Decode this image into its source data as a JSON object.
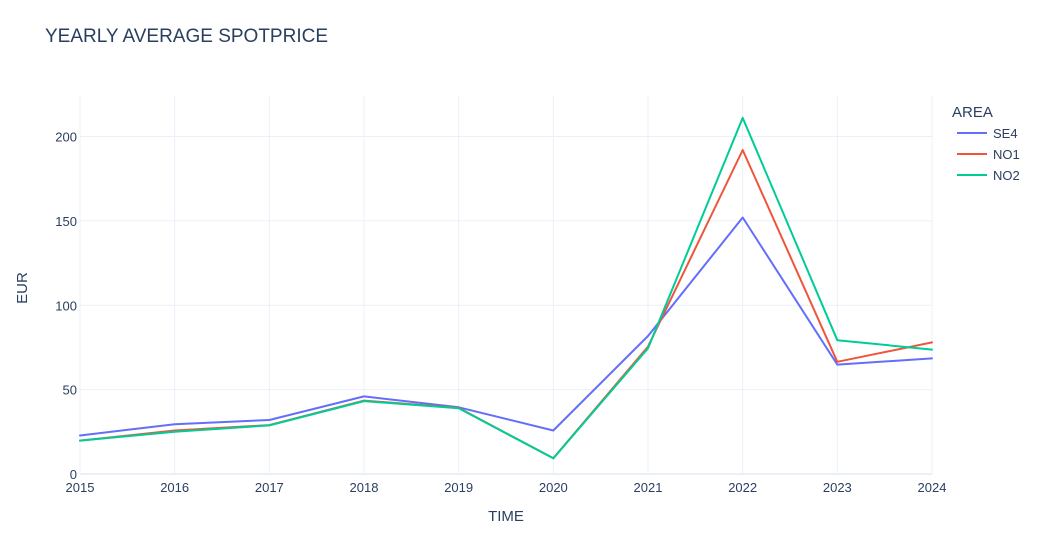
{
  "chart_data": {
    "type": "line",
    "title": "YEARLY AVERAGE SPOTPRICE",
    "xlabel": "TIME",
    "ylabel": "EUR",
    "x": [
      2015,
      2016,
      2017,
      2018,
      2019,
      2020,
      2021,
      2022,
      2023,
      2024
    ],
    "xlim": [
      2015,
      2024
    ],
    "ylim": [
      0,
      224
    ],
    "yticks": [
      0,
      50,
      100,
      150,
      200
    ],
    "grid": true,
    "legend_title": "AREA",
    "legend_position": "top-right",
    "series": [
      {
        "name": "SE4",
        "color": "#636efa",
        "values": [
          22.8,
          29.5,
          32.0,
          46.0,
          39.5,
          25.8,
          81.8,
          152.0,
          64.8,
          68.5
        ]
      },
      {
        "name": "NO1",
        "color": "#ef553b",
        "values": [
          19.8,
          25.8,
          29.0,
          43.5,
          39.2,
          9.3,
          75.5,
          192.0,
          66.5,
          78.0
        ]
      },
      {
        "name": "NO2",
        "color": "#00cc96",
        "values": [
          19.8,
          25.0,
          28.8,
          43.2,
          39.0,
          9.3,
          74.5,
          211.0,
          79.3,
          73.7
        ]
      }
    ]
  }
}
